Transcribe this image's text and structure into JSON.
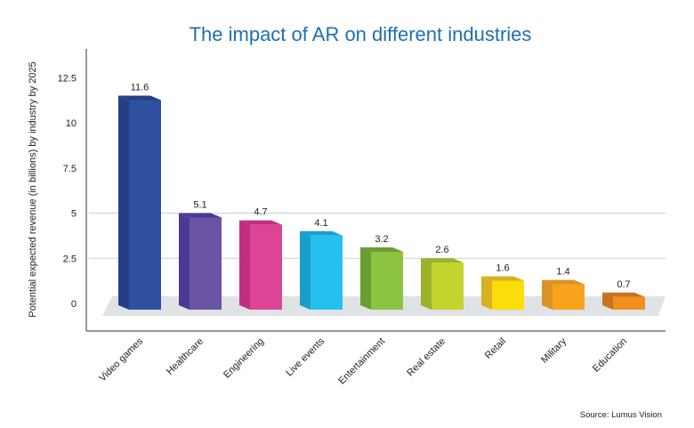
{
  "chart_data": {
    "type": "bar",
    "title": "The impact of AR on different industries",
    "xlabel": "",
    "ylabel": "Potential expected revenue (in billions) by industry by 2025",
    "ylim": [
      0,
      12.5
    ],
    "yticks": [
      "0",
      "2.5",
      "5",
      "7.5",
      "10",
      "12.5"
    ],
    "categories": [
      "Video games",
      "Healthcare",
      "Engineering",
      "Live events",
      "Entertainment",
      "Real estate",
      "Retail",
      "Military",
      "Education"
    ],
    "values": [
      11.6,
      5.1,
      4.7,
      4.1,
      3.2,
      2.6,
      1.6,
      1.4,
      0.7
    ],
    "data_labels": [
      "11.6",
      "5.1",
      "4.7",
      "4.1",
      "3.2",
      "2.6",
      "1.6",
      "1.4",
      "0.7"
    ],
    "colors": [
      "#2f4fa0",
      "#6a55a5",
      "#dc4595",
      "#25c0ee",
      "#8cc43f",
      "#c2d52e",
      "#fbdd0a",
      "#f8a31c",
      "#f48f1e"
    ],
    "side_colors": [
      "#253f86",
      "#4a3a95",
      "#c22f82",
      "#1a9fc8",
      "#6b9e32",
      "#9cb02a",
      "#d8b022",
      "#d99325",
      "#c8731d"
    ],
    "grid": true,
    "source": "Source: Lumus Vision"
  }
}
